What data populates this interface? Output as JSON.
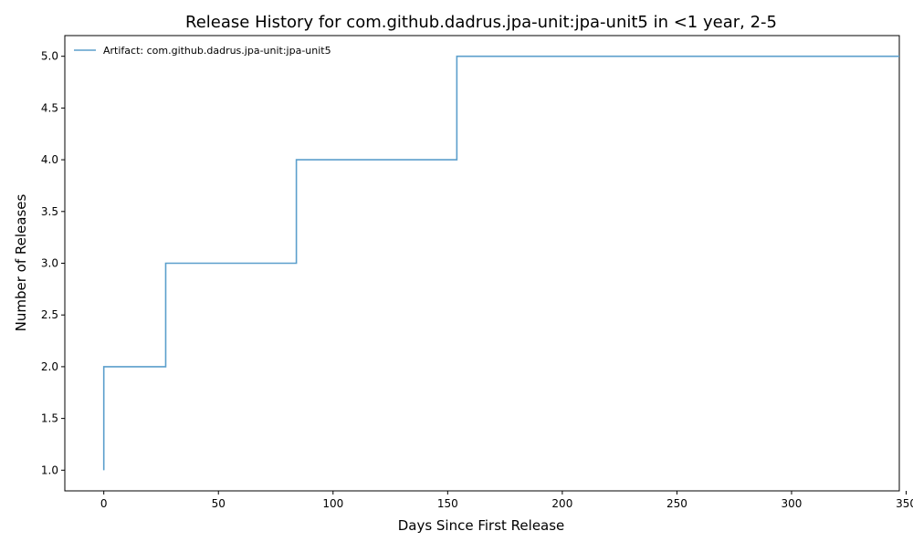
{
  "chart_data": {
    "type": "line",
    "drawstyle": "steps-post",
    "title": "Release History for com.github.dadrus.jpa-unit:jpa-unit5 in <1 year, 2-5",
    "xlabel": "Days Since First Release",
    "ylabel": "Number of Releases",
    "xlim": [
      -17,
      347
    ],
    "ylim": [
      0.8,
      5.2
    ],
    "xticks": [
      0,
      50,
      100,
      150,
      200,
      250,
      300,
      350
    ],
    "yticks": [
      1.0,
      1.5,
      2.0,
      2.5,
      3.0,
      3.5,
      4.0,
      4.5,
      5.0
    ],
    "xtick_labels": [
      "0",
      "50",
      "100",
      "150",
      "200",
      "250",
      "300",
      "350"
    ],
    "ytick_labels": [
      "1.0",
      "1.5",
      "2.0",
      "2.5",
      "3.0",
      "3.5",
      "4.0",
      "4.5",
      "5.0"
    ],
    "grid": false,
    "legend": {
      "position": "top-left",
      "frame": false
    },
    "series": [
      {
        "name": "Artifact: com.github.dadrus.jpa-unit:jpa-unit5",
        "color": "#5b9fcc",
        "x": [
          0,
          0,
          27,
          84,
          154,
          347
        ],
        "y": [
          1,
          2,
          3,
          4,
          5,
          5
        ]
      }
    ]
  }
}
